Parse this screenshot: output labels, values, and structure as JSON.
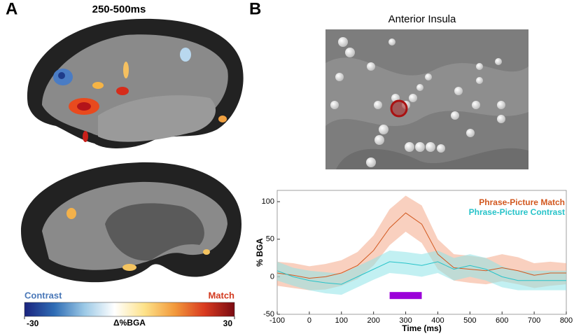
{
  "panel_a": {
    "label": "A",
    "title": "250-500ms",
    "colorbar": {
      "low_label": "Contrast",
      "high_label": "Match",
      "axis_label": "Δ%BGA",
      "lim": [
        -30,
        30
      ],
      "ticks": [
        -30,
        30
      ],
      "colors": [
        "#1a237e",
        "#2f6db5",
        "#9cc9e6",
        "#ffffff",
        "#fde28a",
        "#f29a3c",
        "#d93a1f",
        "#7a0b12"
      ]
    }
  },
  "panel_b": {
    "label": "B",
    "image_title": "Anterior Insula"
  },
  "chart_data": {
    "type": "line",
    "x": [
      -100,
      -50,
      0,
      50,
      100,
      150,
      200,
      250,
      300,
      350,
      400,
      450,
      500,
      550,
      600,
      650,
      700,
      750,
      800
    ],
    "series": [
      {
        "name": "Phrase-Picture Match",
        "color": "#d2581f",
        "band_color": "#f4a98a",
        "values": [
          5,
          2,
          -2,
          0,
          5,
          15,
          35,
          65,
          85,
          70,
          30,
          12,
          10,
          8,
          12,
          8,
          2,
          5,
          5
        ],
        "lower": [
          -12,
          -15,
          -18,
          -17,
          -12,
          -3,
          15,
          42,
          60,
          45,
          10,
          -5,
          -8,
          -10,
          -6,
          -10,
          -15,
          -12,
          -10
        ],
        "upper": [
          20,
          18,
          14,
          17,
          22,
          33,
          55,
          90,
          108,
          95,
          50,
          30,
          28,
          25,
          30,
          26,
          18,
          20,
          18
        ]
      },
      {
        "name": "Phrase-Picture Contrast",
        "color": "#27c3c9",
        "band_color": "#8fe3e8",
        "values": [
          8,
          0,
          -5,
          -8,
          -10,
          0,
          10,
          20,
          18,
          15,
          20,
          10,
          15,
          10,
          0,
          -5,
          -5,
          -5,
          -5
        ],
        "lower": [
          -5,
          -12,
          -18,
          -22,
          -24,
          -14,
          -4,
          5,
          3,
          0,
          5,
          -5,
          0,
          -5,
          -14,
          -18,
          -18,
          -18,
          -18
        ],
        "upper": [
          20,
          12,
          8,
          6,
          4,
          14,
          24,
          35,
          33,
          30,
          35,
          25,
          30,
          25,
          14,
          8,
          8,
          8,
          8
        ]
      }
    ],
    "highlight": {
      "x": [
        250,
        350
      ],
      "y": -25,
      "color": "#9b00d9"
    },
    "xlim": [
      -100,
      800
    ],
    "xticks": [
      -100,
      0,
      100,
      200,
      300,
      400,
      500,
      600,
      700,
      800
    ],
    "ylim": [
      -50,
      115
    ],
    "yticks": [
      -50,
      0,
      50,
      100
    ],
    "xlabel": "Time (ms)",
    "ylabel": "% BGA"
  }
}
